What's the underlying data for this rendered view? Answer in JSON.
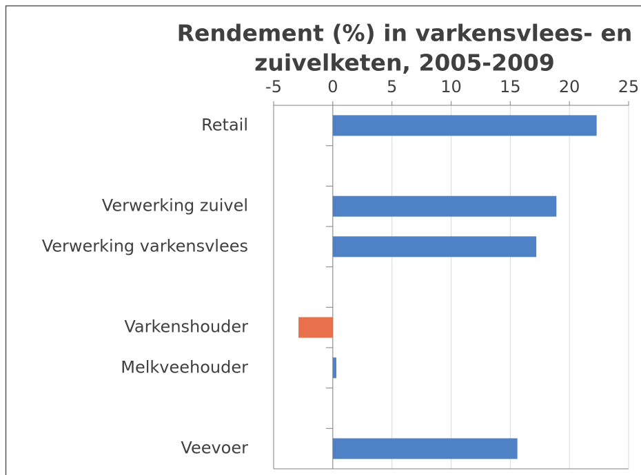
{
  "chart_data": {
    "type": "bar",
    "orientation": "horizontal",
    "title": [
      "Rendement (%) in varkensvlees- en",
      "zuivelketen, 2005-2009"
    ],
    "categories": [
      "Retail",
      null,
      "Verwerking zuivel",
      "Verwerking varkensvlees",
      null,
      "Varkenshouder",
      "Melkveehouder",
      null,
      "Veevoer"
    ],
    "values": [
      22.3,
      null,
      18.9,
      17.2,
      null,
      -2.9,
      0.3,
      null,
      15.6
    ],
    "colors": [
      "#4f81c7",
      null,
      "#4f81c7",
      "#4f81c7",
      null,
      "#e8704a",
      "#4f81c7",
      null,
      "#4f81c7"
    ],
    "xlim": [
      -5,
      25
    ],
    "xticks": [
      -5,
      0,
      5,
      10,
      15,
      20,
      25
    ],
    "grid": true,
    "xaxis_position": "top"
  }
}
